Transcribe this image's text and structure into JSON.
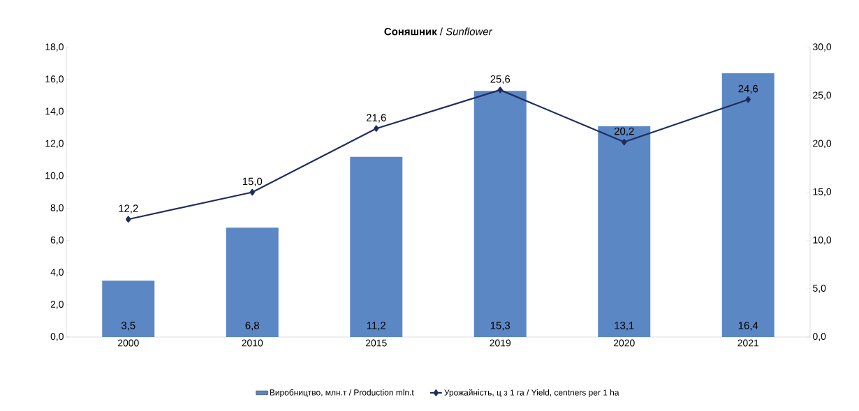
{
  "chart_data": {
    "type": "bar",
    "title": "**Соняшник** / *Sunflower*",
    "categories": [
      "2000",
      "2010",
      "2015",
      "2019",
      "2020",
      "2021"
    ],
    "series": [
      {
        "name": "Виробництво, млн.т / Production mln.t",
        "color": "#5b87c5",
        "values": [
          3.5,
          6.8,
          11.2,
          15.3,
          13.1,
          16.4
        ],
        "value_labels": [
          "3,5",
          "6,8",
          "11,2",
          "15,3",
          "13,1",
          "16,4"
        ]
      },
      {
        "name": "Урожайність, ц з 1 га / Yield, centners per 1 ha",
        "type": "line",
        "axis": "y2",
        "color": "#1f2d5e",
        "values": [
          12.2,
          15.0,
          21.6,
          25.6,
          20.2,
          24.6
        ],
        "value_labels": [
          "12,2",
          "15,0",
          "21,6",
          "25,6",
          "20,2",
          "24,6"
        ]
      }
    ],
    "ylim": [
      0,
      18
    ],
    "yticks": [
      {
        "value": 0,
        "label": "0,0"
      },
      {
        "value": 2,
        "label": "2,0"
      },
      {
        "value": 4,
        "label": "4,0"
      },
      {
        "value": 6,
        "label": "6,0"
      },
      {
        "value": 8,
        "label": "8,0"
      },
      {
        "value": 10,
        "label": "10,0"
      },
      {
        "value": 12,
        "label": "12,0"
      },
      {
        "value": 14,
        "label": "14,0"
      },
      {
        "value": 16,
        "label": "16,0"
      },
      {
        "value": 18,
        "label": "18,0"
      }
    ],
    "y2lim": [
      0,
      30
    ],
    "y2ticks": [
      {
        "value": 0,
        "label": "0,0"
      },
      {
        "value": 5,
        "label": "5,0"
      },
      {
        "value": 10,
        "label": "10,0"
      },
      {
        "value": 15,
        "label": "15,0"
      },
      {
        "value": 20,
        "label": "20,0"
      },
      {
        "value": 25,
        "label": "25,0"
      },
      {
        "value": 30,
        "label": "30,0"
      }
    ],
    "marker": "diamond",
    "line_style": "solid",
    "legend": "bottom",
    "grid": false
  }
}
